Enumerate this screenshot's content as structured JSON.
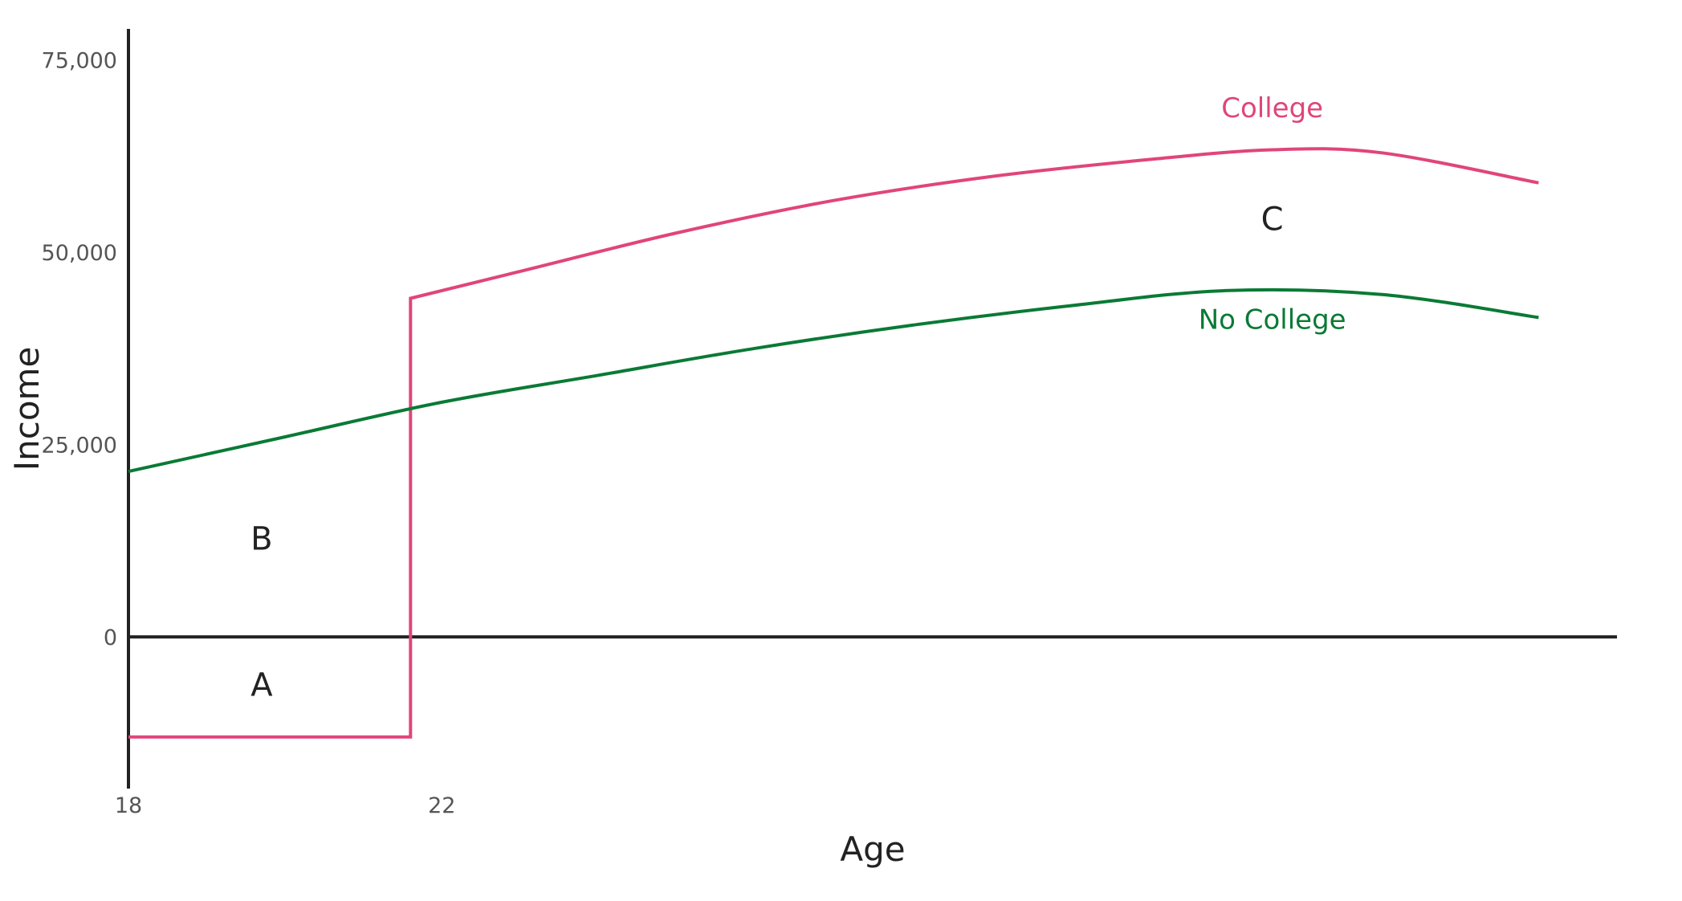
{
  "chart_data": {
    "type": "line",
    "xlabel": "Age",
    "ylabel": "Income",
    "xlim": [
      18,
      37
    ],
    "ylim": [
      -19700,
      79000
    ],
    "x_ticks": [
      "18",
      "22"
    ],
    "x_tick_values": [
      18,
      22
    ],
    "y_ticks": [
      "0",
      "25,000",
      "50,000",
      "75,000"
    ],
    "y_tick_values": [
      0,
      25000,
      50000,
      75000
    ],
    "grid": false,
    "series": [
      {
        "name": "College",
        "color": "#e0457b",
        "x": [
          18,
          21.6,
          21.6,
          23,
          25,
          27,
          29,
          31,
          32.6,
          34,
          36
        ],
        "y": [
          -13000,
          -13000,
          44000,
          47500,
          52500,
          56700,
          59800,
          62000,
          63300,
          62900,
          59000
        ]
      },
      {
        "name": "No College",
        "color": "#0a7a35",
        "x": [
          18,
          20,
          22,
          24,
          26,
          28,
          30,
          32,
          34,
          36
        ],
        "y": [
          21500,
          26000,
          30500,
          34000,
          37500,
          40500,
          43000,
          45000,
          44500,
          41500
        ]
      }
    ],
    "annotations": [
      {
        "text": "A",
        "x": 19.7,
        "y": -6500
      },
      {
        "text": "B",
        "x": 19.7,
        "y": 12500
      },
      {
        "text": "C",
        "x": 32.6,
        "y": 54000
      }
    ],
    "series_labels": [
      {
        "text": "College",
        "x": 32.6,
        "y": 68500
      },
      {
        "text": "No College",
        "x": 32.6,
        "y": 41000
      }
    ]
  }
}
